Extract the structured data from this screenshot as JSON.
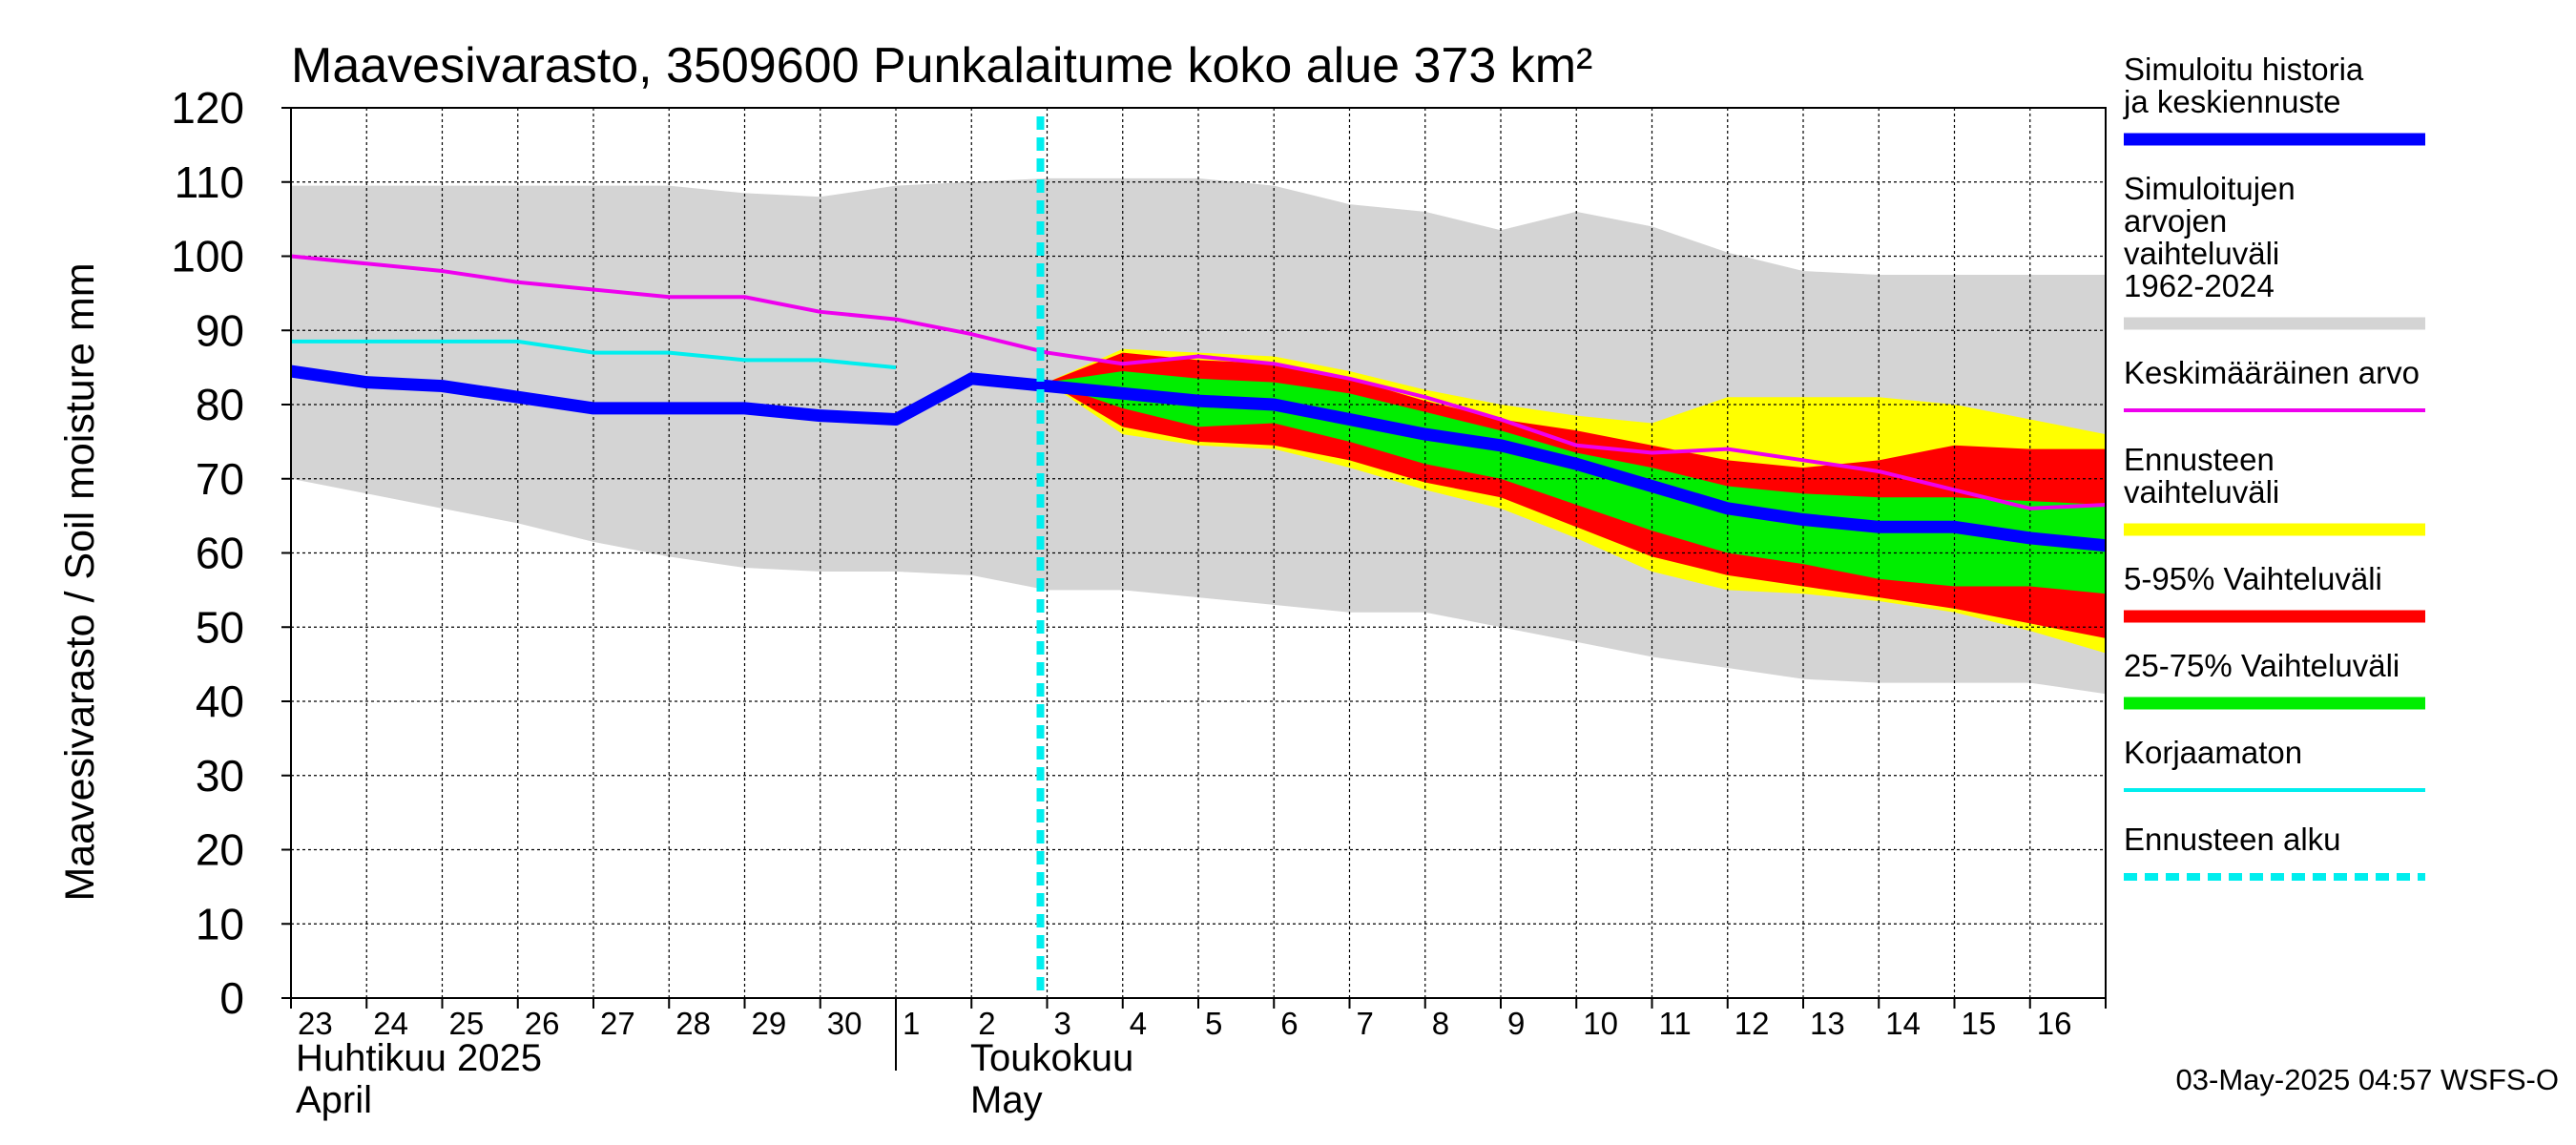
{
  "chart_data": {
    "type": "area",
    "title": "Maavesivarasto, 3509600 Punkalaitume koko alue 373 km²",
    "ylabel": "Maavesivarasto / Soil moisture   mm",
    "ylim": [
      0,
      120
    ],
    "yticks": [
      0,
      10,
      20,
      30,
      40,
      50,
      60,
      70,
      80,
      90,
      100,
      110,
      120
    ],
    "xlim": [
      0,
      24
    ],
    "x_tick_labels": [
      "23",
      "24",
      "25",
      "26",
      "27",
      "28",
      "29",
      "30",
      "1",
      "2",
      "3",
      "4",
      "5",
      "6",
      "7",
      "8",
      "9",
      "10",
      "11",
      "12",
      "13",
      "14",
      "15",
      "16"
    ],
    "months": [
      {
        "fi": "Huhtikuu  2025",
        "en": "April",
        "start_x": 0
      },
      {
        "fi": "Toukokuu",
        "en": "May",
        "start_x": 8
      }
    ],
    "forecast_start_x": 10,
    "grid": true,
    "timestamp": "03-May-2025 04:57 WSFS-O",
    "series": [
      {
        "name": "Simuloitujen arvojen vaihteluväli 1962-2024",
        "kind": "band",
        "color": "#d4d4d4",
        "x": [
          0,
          1,
          2,
          3,
          4,
          5,
          6,
          7,
          8,
          9,
          10,
          11,
          12,
          13,
          14,
          15,
          16,
          17,
          18,
          19,
          20,
          21,
          22,
          23,
          24
        ],
        "upper": [
          109.5,
          109.5,
          109.5,
          109.5,
          109.5,
          109.5,
          108.5,
          108,
          109.5,
          110,
          110.5,
          110.5,
          110.5,
          109.5,
          107,
          106,
          103.5,
          106,
          104,
          100.5,
          98,
          97.5,
          97.5,
          97.5,
          97.5
        ],
        "lower": [
          70,
          68,
          66,
          64,
          61.5,
          59.5,
          58,
          57.5,
          57.5,
          57,
          55,
          55,
          54,
          53,
          52,
          52,
          50,
          48,
          46,
          44.5,
          43,
          42.5,
          42.5,
          42.5,
          41
        ]
      },
      {
        "name": "Ennusteen vaihteluväli",
        "kind": "band",
        "color": "#ffff00",
        "x": [
          10,
          11,
          12,
          13,
          14,
          15,
          16,
          17,
          18,
          19,
          20,
          21,
          22,
          23,
          24
        ],
        "upper": [
          83,
          87.5,
          87,
          86.5,
          84.5,
          82,
          80,
          78.5,
          77.5,
          81,
          81,
          81,
          80,
          78,
          76
        ],
        "lower": [
          83,
          76,
          74.5,
          74,
          71.5,
          68.5,
          66,
          62,
          57.5,
          55,
          54.5,
          53.5,
          52,
          49.5,
          46.5
        ]
      },
      {
        "name": "5-95% Vaihteluväli",
        "kind": "band",
        "color": "#ff0000",
        "x": [
          10,
          11,
          12,
          13,
          14,
          15,
          16,
          17,
          18,
          19,
          20,
          21,
          22,
          23,
          24
        ],
        "upper": [
          83,
          87,
          86,
          85.5,
          83.5,
          80.5,
          78,
          76.5,
          74.5,
          72.5,
          71.5,
          72.5,
          74.5,
          74,
          74
        ],
        "lower": [
          83,
          77,
          75,
          74.5,
          72.5,
          69.5,
          67.5,
          63.5,
          59.5,
          57,
          55.5,
          54,
          52.5,
          50.5,
          48.5
        ]
      },
      {
        "name": "25-75% Vaihteluväli",
        "kind": "band",
        "color": "#00ee00",
        "x": [
          10,
          11,
          12,
          13,
          14,
          15,
          16,
          17,
          18,
          19,
          20,
          21,
          22,
          23,
          24
        ],
        "upper": [
          83,
          84.5,
          83.5,
          83,
          81.5,
          79,
          76.5,
          73.5,
          71.5,
          69,
          68,
          67.5,
          67.5,
          67,
          66.5
        ],
        "lower": [
          83,
          79.5,
          77,
          77.5,
          75,
          72,
          70,
          66.5,
          63,
          60,
          58.5,
          56.5,
          55.5,
          55.5,
          54.5
        ]
      },
      {
        "name": "Keskimääräinen arvo",
        "kind": "line",
        "color": "#ee00ee",
        "x": [
          0,
          1,
          2,
          3,
          4,
          5,
          6,
          7,
          8,
          9,
          10,
          11,
          12,
          13,
          14,
          15,
          16,
          17,
          18,
          19,
          20,
          21,
          22,
          23,
          24
        ],
        "values": [
          100,
          99,
          98,
          96.5,
          95.5,
          94.5,
          94.5,
          92.5,
          91.5,
          89.5,
          87,
          85.5,
          86.5,
          85.5,
          83.5,
          81,
          78,
          74.5,
          73.5,
          74,
          72.5,
          71,
          68.5,
          66,
          66.5
        ]
      },
      {
        "name": "Korjaamaton",
        "kind": "line",
        "color": "#00eeee",
        "x": [
          0,
          1,
          2,
          3,
          4,
          5,
          6,
          7,
          8
        ],
        "values": [
          88.5,
          88.5,
          88.5,
          88.5,
          87,
          87,
          86,
          86,
          85
        ]
      },
      {
        "name": "Simuloitu historia ja keskiennuste",
        "kind": "line",
        "color": "#0000ff",
        "x": [
          0,
          1,
          2,
          3,
          4,
          5,
          6,
          7,
          8,
          9,
          10,
          11,
          12,
          13,
          14,
          15,
          16,
          17,
          18,
          19,
          20,
          21,
          22,
          23,
          24
        ],
        "values": [
          84.5,
          83,
          82.5,
          81,
          79.5,
          79.5,
          79.5,
          78.5,
          78,
          83.5,
          82.5,
          81.5,
          80.5,
          80,
          78,
          76,
          74.5,
          72,
          69,
          66,
          64.5,
          63.5,
          63.5,
          62,
          61
        ]
      }
    ],
    "legend": [
      {
        "label": "Simuloitu historia ja keskiennuste",
        "color": "#0000ff",
        "style": "thick"
      },
      {
        "label": "Simuloitujen arvojen vaihteluväli 1962-2024",
        "color": "#d4d4d4",
        "style": "thick"
      },
      {
        "label": "Keskimääräinen arvo",
        "color": "#ee00ee",
        "style": "thin"
      },
      {
        "label": "Ennusteen vaihteluväli",
        "color": "#ffff00",
        "style": "thick"
      },
      {
        "label": "5-95% Vaihteluväli",
        "color": "#ff0000",
        "style": "thick"
      },
      {
        "label": "25-75% Vaihteluväli",
        "color": "#00ee00",
        "style": "thick"
      },
      {
        "label": "Korjaamaton",
        "color": "#00eeee",
        "style": "thin"
      },
      {
        "label": "Ennusteen alku",
        "color": "#00eeee",
        "style": "dashed"
      }
    ]
  }
}
